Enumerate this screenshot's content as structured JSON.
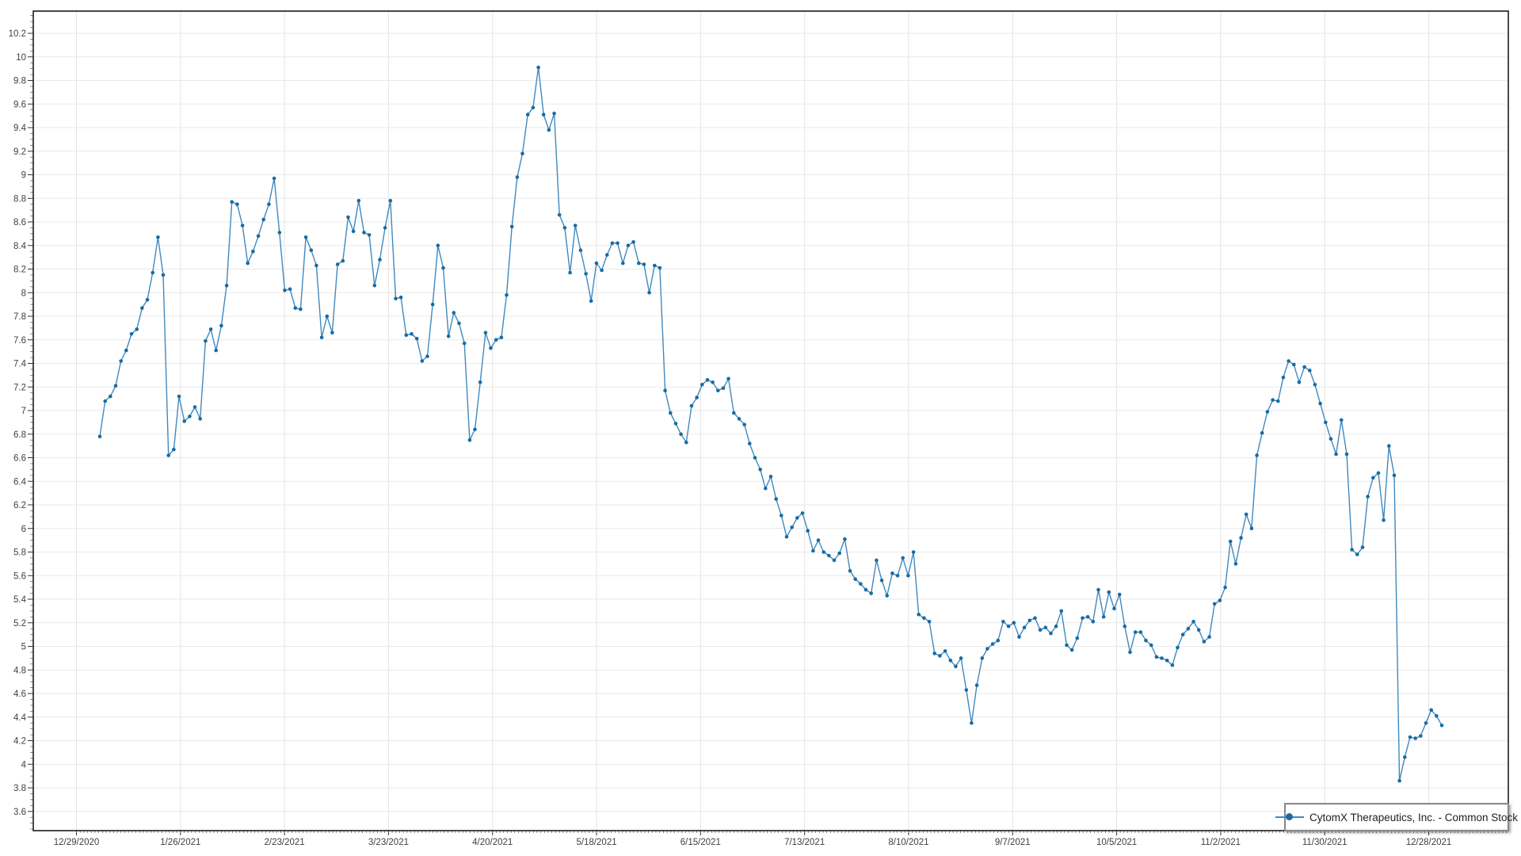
{
  "legend": {
    "label": "CytomX Therapeutics, Inc. - Common Stock"
  },
  "chart_data": {
    "type": "line",
    "title": "",
    "legend_position": "bottom-right",
    "grid": true,
    "line_color": "#4089bf",
    "marker_color": "#176ba3",
    "x_axis": {
      "tick_labels": [
        "12/29/2020",
        "1/26/2021",
        "2/23/2021",
        "3/23/2021",
        "4/20/2021",
        "5/18/2021",
        "6/15/2021",
        "7/13/2021",
        "8/10/2021",
        "9/7/2021",
        "10/5/2021",
        "11/2/2021",
        "11/30/2021",
        "12/28/2021"
      ]
    },
    "y_axis": {
      "tick_labels": [
        "10.2",
        "10",
        "9.8",
        "9.6",
        "9.4",
        "9.2",
        "9",
        "8.8",
        "8.6",
        "8.4",
        "8.2",
        "8",
        "7.8",
        "7.6",
        "7.4",
        "7.2",
        "7",
        "6.8",
        "6.6",
        "6.4",
        "6.2",
        "6",
        "5.8",
        "5.6",
        "5.4",
        "5.2",
        "5",
        "4.8",
        "4.6",
        "4.4",
        "4.2",
        "4",
        "3.8",
        "3.6"
      ],
      "tick_values": [
        10.2,
        10,
        9.8,
        9.6,
        9.4,
        9.2,
        9,
        8.8,
        8.6,
        8.4,
        8.2,
        8,
        7.8,
        7.6,
        7.4,
        7.2,
        7,
        6.8,
        6.6,
        6.4,
        6.2,
        6,
        5.8,
        5.6,
        5.4,
        5.2,
        5,
        4.8,
        4.6,
        4.4,
        4.2,
        4,
        3.8,
        3.6
      ],
      "min": 3.6,
      "max": 10.2,
      "step": 0.2
    },
    "series": [
      {
        "name": "CytomX Therapeutics, Inc. - Common Stock",
        "values": [
          6.78,
          7.08,
          7.12,
          7.21,
          7.42,
          7.51,
          7.65,
          7.69,
          7.87,
          7.94,
          8.17,
          8.47,
          8.15,
          6.62,
          6.67,
          7.12,
          6.91,
          6.95,
          7.03,
          6.93,
          7.59,
          7.69,
          7.51,
          7.72,
          8.06,
          8.77,
          8.75,
          8.57,
          8.25,
          8.35,
          8.48,
          8.62,
          8.75,
          8.97,
          8.51,
          8.02,
          8.03,
          7.87,
          7.86,
          8.47,
          8.36,
          8.23,
          7.62,
          7.8,
          7.66,
          8.24,
          8.27,
          8.64,
          8.52,
          8.78,
          8.51,
          8.49,
          8.06,
          8.28,
          8.55,
          8.78,
          7.95,
          7.96,
          7.64,
          7.65,
          7.61,
          7.42,
          7.46,
          7.9,
          8.4,
          8.21,
          7.63,
          7.83,
          7.74,
          7.57,
          6.75,
          6.84,
          7.24,
          7.66,
          7.53,
          7.6,
          7.62,
          7.98,
          8.56,
          8.98,
          9.18,
          9.51,
          9.57,
          9.91,
          9.51,
          9.38,
          9.52,
          8.66,
          8.55,
          8.17,
          8.57,
          8.36,
          8.16,
          7.93,
          8.25,
          8.19,
          8.32,
          8.42,
          8.42,
          8.25,
          8.4,
          8.43,
          8.25,
          8.24,
          8.0,
          8.23,
          8.21,
          7.17,
          6.98,
          6.89,
          6.8,
          6.73,
          7.04,
          7.11,
          7.22,
          7.26,
          7.24,
          7.17,
          7.19,
          7.27,
          6.98,
          6.93,
          6.88,
          6.72,
          6.6,
          6.5,
          6.34,
          6.44,
          6.25,
          6.11,
          5.93,
          6.01,
          6.09,
          6.13,
          5.98,
          5.81,
          5.9,
          5.8,
          5.77,
          5.73,
          5.79,
          5.91,
          5.64,
          5.57,
          5.53,
          5.48,
          5.45,
          5.73,
          5.56,
          5.43,
          5.62,
          5.6,
          5.75,
          5.6,
          5.8,
          5.27,
          5.24,
          5.21,
          4.94,
          4.92,
          4.96,
          4.88,
          4.83,
          4.9,
          4.63,
          4.35,
          4.67,
          4.9,
          4.98,
          5.02,
          5.05,
          5.21,
          5.17,
          5.2,
          5.08,
          5.16,
          5.22,
          5.24,
          5.14,
          5.16,
          5.11,
          5.17,
          5.3,
          5.01,
          4.97,
          5.07,
          5.24,
          5.25,
          5.21,
          5.48,
          5.25,
          5.46,
          5.32,
          5.44,
          5.17,
          4.95,
          5.12,
          5.12,
          5.05,
          5.01,
          4.91,
          4.9,
          4.88,
          4.84,
          4.99,
          5.1,
          5.15,
          5.21,
          5.14,
          5.04,
          5.08,
          5.36,
          5.39,
          5.5,
          5.89,
          5.7,
          5.92,
          6.12,
          6.0,
          6.62,
          6.81,
          6.99,
          7.09,
          7.08,
          7.28,
          7.42,
          7.39,
          7.24,
          7.37,
          7.34,
          7.22,
          7.06,
          6.9,
          6.76,
          6.63,
          6.92,
          6.63,
          5.82,
          5.78,
          5.84,
          6.27,
          6.43,
          6.47,
          6.07,
          6.7,
          6.45,
          3.86,
          4.06,
          4.23,
          4.22,
          4.24,
          4.35,
          4.46,
          4.41,
          4.33
        ]
      }
    ]
  }
}
